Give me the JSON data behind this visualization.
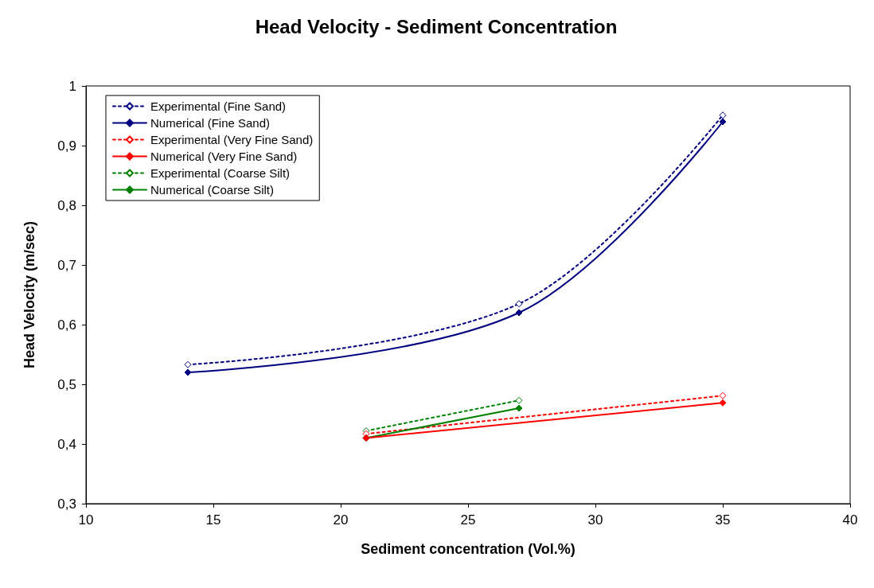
{
  "chart_data": {
    "type": "line",
    "title": "Head Velocity - Sediment Concentration",
    "xlabel": "Sediment concentration (Vol.%)",
    "ylabel": "Head Velocity (m/sec)",
    "xlim": [
      10,
      40
    ],
    "xticks": [
      10,
      15,
      20,
      25,
      30,
      35,
      40
    ],
    "ylim": [
      0.3,
      1
    ],
    "yticks": [
      {
        "value": 0.3,
        "label": "0,3"
      },
      {
        "value": 0.4,
        "label": "0,4"
      },
      {
        "value": 0.5,
        "label": "0,5"
      },
      {
        "value": 0.6,
        "label": "0,6"
      },
      {
        "value": 0.7,
        "label": "0,7"
      },
      {
        "value": 0.8,
        "label": "0,8"
      },
      {
        "value": 0.9,
        "label": "0,9"
      },
      1
    ],
    "grid": false,
    "legend": "top left",
    "marker": "diamond",
    "series": [
      {
        "name": "Experimental (Fine Sand)",
        "color": "#000080",
        "line_style": "dotted",
        "x": [
          14,
          27,
          35
        ],
        "values": [
          0.533,
          0.635,
          0.951
        ]
      },
      {
        "name": "Numerical (Fine Sand)",
        "color": "#000080",
        "line_style": "solid",
        "x": [
          14,
          27,
          35
        ],
        "values": [
          0.52,
          0.62,
          0.94
        ]
      },
      {
        "name": "Experimental (Very Fine Sand)",
        "color": "#ff0000",
        "line_style": "dotted",
        "x": [
          21,
          35
        ],
        "values": [
          0.417,
          0.481
        ]
      },
      {
        "name": "Numerical (Very Fine Sand)",
        "color": "#ff0000",
        "line_style": "solid",
        "x": [
          21,
          35
        ],
        "values": [
          0.41,
          0.469
        ]
      },
      {
        "name": "Experimental (Coarse Silt)",
        "color": "#008000",
        "line_style": "dotted",
        "x": [
          21,
          27
        ],
        "values": [
          0.422,
          0.473
        ]
      },
      {
        "name": "Numerical (Coarse Silt)",
        "color": "#008000",
        "line_style": "solid",
        "x": [
          21,
          27
        ],
        "values": [
          0.41,
          0.46
        ]
      }
    ]
  }
}
